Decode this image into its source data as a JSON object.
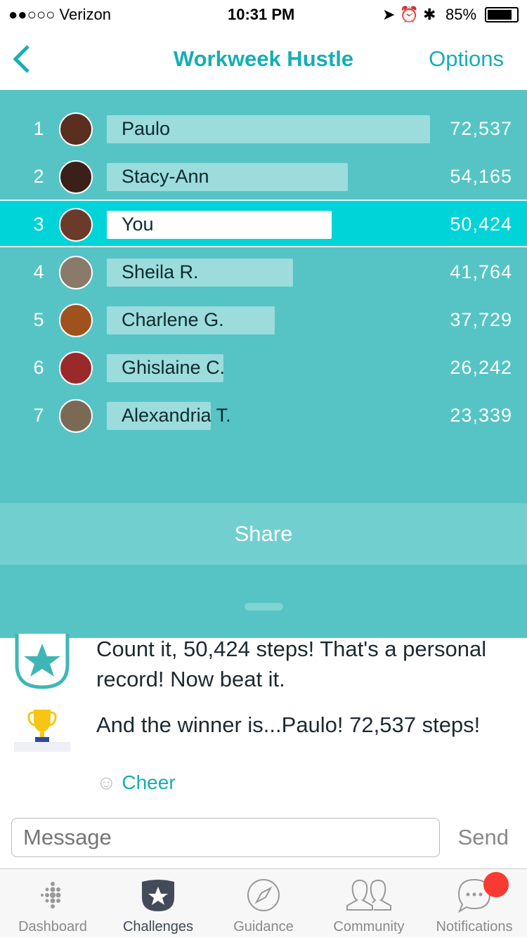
{
  "status": {
    "carrier": "●●○○○ Verizon",
    "time": "10:31 PM",
    "battery": "85%"
  },
  "nav": {
    "title": "Workweek Hustle",
    "options": "Options"
  },
  "colors": {
    "accent": "#15aeb6",
    "board": "#56c4c4",
    "highlight": "#00d4d8",
    "bar": "#9cdcdc"
  },
  "leaderboard": [
    {
      "rank": "1",
      "name": "Paulo",
      "steps": "72,537",
      "value": 72537,
      "avatar": "#5a2f20"
    },
    {
      "rank": "2",
      "name": "Stacy-Ann",
      "steps": "54,165",
      "value": 54165,
      "avatar": "#3a2018"
    },
    {
      "rank": "3",
      "name": "You",
      "steps": "50,424",
      "value": 50424,
      "avatar": "#6a3a2a",
      "me": true
    },
    {
      "rank": "4",
      "name": "Sheila R.",
      "steps": "41,764",
      "value": 41764,
      "avatar": "#8a7a6a"
    },
    {
      "rank": "5",
      "name": "Charlene G.",
      "steps": "37,729",
      "value": 37729,
      "avatar": "#a0521e"
    },
    {
      "rank": "6",
      "name": "Ghislaine C.",
      "steps": "26,242",
      "value": 26242,
      "avatar": "#9a2a2a"
    },
    {
      "rank": "7",
      "name": "Alexandria T.",
      "steps": "23,339",
      "value": 23339,
      "avatar": "#7a6a55"
    }
  ],
  "share": "Share",
  "feed": [
    {
      "text": "Count it, 50,424 steps! That's a personal record! Now beat it.",
      "icon": "star-badge-icon"
    },
    {
      "text": "And the winner is...Paulo! 72,537 steps!",
      "icon": "trophy-icon"
    }
  ],
  "cheer": "Cheer",
  "message": {
    "placeholder": "Message",
    "send": "Send"
  },
  "tabs": [
    {
      "label": "Dashboard"
    },
    {
      "label": "Challenges"
    },
    {
      "label": "Guidance"
    },
    {
      "label": "Community"
    },
    {
      "label": "Notifications"
    }
  ]
}
